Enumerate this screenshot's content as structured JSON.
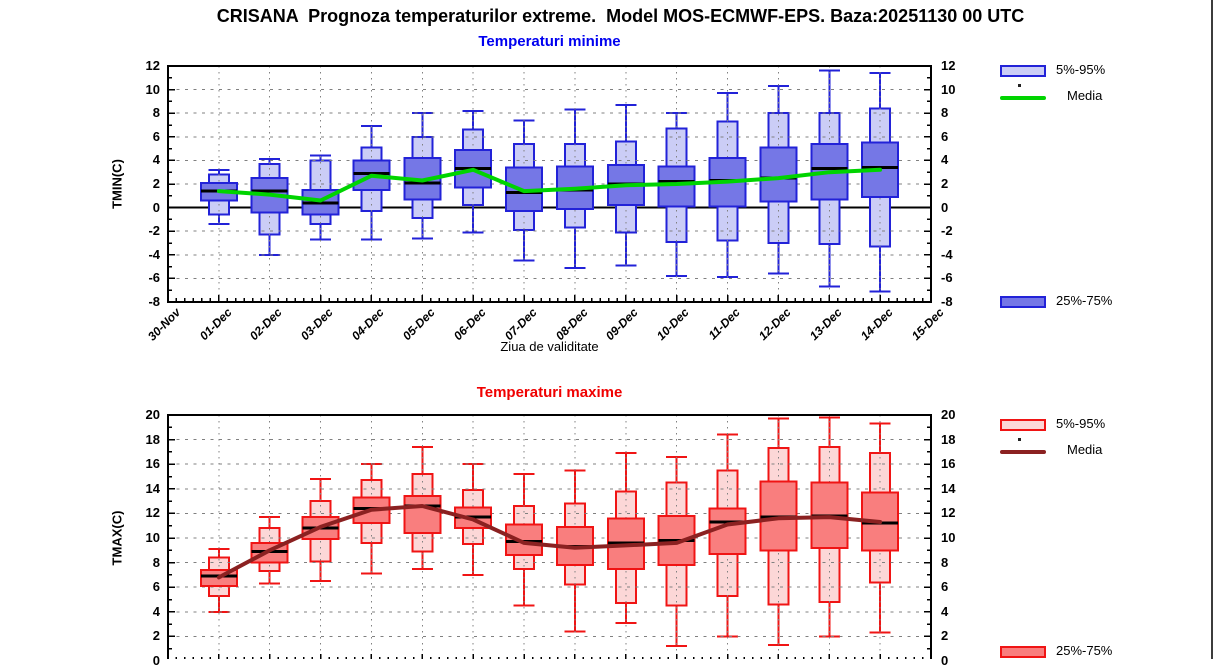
{
  "page": {
    "title": "CRISANA  Prognoza temperaturilor extreme.  Model MOS-ECMWF-EPS. Baza:20251130 00 UTC"
  },
  "chart_data": [
    {
      "id": "tmin",
      "type": "boxplot+line",
      "title": "Temperaturi minime",
      "title_color": "#0000f0",
      "ylabel": "TMIN(C)",
      "xlabel": "Ziua de validitate",
      "ylim": [
        -8,
        12
      ],
      "ytick_step": 2,
      "grid": true,
      "zero_line": true,
      "show_date_labels": true,
      "legend_position": "right",
      "legend": {
        "p5_95": "5%-95%",
        "media": "Media",
        "p25_75": "25%-75%"
      },
      "colors": {
        "border": "#2222d8",
        "box_dark": "#7577e6",
        "box_light": "#cbcdf6",
        "median": "#000000",
        "mean_line": "#00d400"
      },
      "x_categories": [
        "30-Nov",
        "01-Dec",
        "02-Dec",
        "03-Dec",
        "04-Dec",
        "05-Dec",
        "06-Dec",
        "07-Dec",
        "08-Dec",
        "09-Dec",
        "10-Dec",
        "11-Dec",
        "12-Dec",
        "13-Dec",
        "14-Dec",
        "15-Dec"
      ],
      "boxes": [
        {
          "day": "01-Dec",
          "whisker_low": -1.4,
          "p5": -0.6,
          "q25": 0.6,
          "median": 1.4,
          "q75": 2.1,
          "p95": 2.8,
          "whisker_high": 3.2,
          "mean": 1.4
        },
        {
          "day": "02-Dec",
          "whisker_low": -4.0,
          "p5": -2.3,
          "q25": -0.4,
          "median": 1.4,
          "q75": 2.5,
          "p95": 3.7,
          "whisker_high": 4.1,
          "mean": 1.1
        },
        {
          "day": "03-Dec",
          "whisker_low": -2.7,
          "p5": -1.4,
          "q25": -0.6,
          "median": 0.4,
          "q75": 1.5,
          "p95": 4.0,
          "whisker_high": 4.4,
          "mean": 0.6
        },
        {
          "day": "04-Dec",
          "whisker_low": -2.7,
          "p5": -0.3,
          "q25": 1.5,
          "median": 2.9,
          "q75": 4.0,
          "p95": 5.1,
          "whisker_high": 6.9,
          "mean": 2.7
        },
        {
          "day": "05-Dec",
          "whisker_low": -2.6,
          "p5": -0.9,
          "q25": 0.7,
          "median": 2.1,
          "q75": 4.2,
          "p95": 6.0,
          "whisker_high": 8.0,
          "mean": 2.3
        },
        {
          "day": "06-Dec",
          "whisker_low": -2.1,
          "p5": 0.2,
          "q25": 1.7,
          "median": 3.3,
          "q75": 4.9,
          "p95": 6.6,
          "whisker_high": 8.2,
          "mean": 3.2
        },
        {
          "day": "07-Dec",
          "whisker_low": -4.5,
          "p5": -1.9,
          "q25": -0.3,
          "median": 1.3,
          "q75": 3.4,
          "p95": 5.4,
          "whisker_high": 7.4,
          "mean": 1.4
        },
        {
          "day": "08-Dec",
          "whisker_low": -5.1,
          "p5": -1.7,
          "q25": -0.1,
          "median": 1.5,
          "q75": 3.5,
          "p95": 5.4,
          "whisker_high": 8.3,
          "mean": 1.6
        },
        {
          "day": "09-Dec",
          "whisker_low": -4.9,
          "p5": -2.1,
          "q25": 0.2,
          "median": 2.0,
          "q75": 3.6,
          "p95": 5.6,
          "whisker_high": 8.7,
          "mean": 1.9
        },
        {
          "day": "10-Dec",
          "whisker_low": -5.8,
          "p5": -2.9,
          "q25": 0.1,
          "median": 2.2,
          "q75": 3.5,
          "p95": 6.7,
          "whisker_high": 8.0,
          "mean": 2.0
        },
        {
          "day": "11-Dec",
          "whisker_low": -5.9,
          "p5": -2.8,
          "q25": 0.1,
          "median": 2.3,
          "q75": 4.2,
          "p95": 7.3,
          "whisker_high": 9.7,
          "mean": 2.2
        },
        {
          "day": "12-Dec",
          "whisker_low": -5.6,
          "p5": -3.0,
          "q25": 0.5,
          "median": 2.5,
          "q75": 5.1,
          "p95": 8.0,
          "whisker_high": 10.3,
          "mean": 2.5
        },
        {
          "day": "13-Dec",
          "whisker_low": -6.7,
          "p5": -3.1,
          "q25": 0.7,
          "median": 3.3,
          "q75": 5.4,
          "p95": 8.0,
          "whisker_high": 11.6,
          "mean": 3.0
        },
        {
          "day": "14-Dec",
          "whisker_low": -7.1,
          "p5": -3.3,
          "q25": 0.9,
          "median": 3.4,
          "q75": 5.5,
          "p95": 8.4,
          "whisker_high": 11.4,
          "mean": 3.2
        }
      ]
    },
    {
      "id": "tmax",
      "type": "boxplot+line",
      "title": "Temperaturi maxime",
      "title_color": "#f00000",
      "ylabel": "TMAX(C)",
      "xlabel": "",
      "ylim": [
        0,
        20
      ],
      "ytick_step": 2,
      "grid": true,
      "zero_line": false,
      "show_date_labels": false,
      "legend_position": "right",
      "legend": {
        "p5_95": "5%-95%",
        "media": "Media",
        "p25_75": "25%-75%"
      },
      "colors": {
        "border": "#f01414",
        "box_dark": "#f97e7e",
        "box_light": "#fcd7d7",
        "median": "#000000",
        "mean_line": "#8b2121"
      },
      "x_categories": [
        "30-Nov",
        "01-Dec",
        "02-Dec",
        "03-Dec",
        "04-Dec",
        "05-Dec",
        "06-Dec",
        "07-Dec",
        "08-Dec",
        "09-Dec",
        "10-Dec",
        "11-Dec",
        "12-Dec",
        "13-Dec",
        "14-Dec",
        "15-Dec"
      ],
      "boxes": [
        {
          "day": "01-Dec",
          "whisker_low": 4.0,
          "p5": 5.3,
          "q25": 6.1,
          "median": 6.9,
          "q75": 7.4,
          "p95": 8.4,
          "whisker_high": 9.1,
          "mean": 6.8
        },
        {
          "day": "02-Dec",
          "whisker_low": 6.3,
          "p5": 7.3,
          "q25": 8.0,
          "median": 8.9,
          "q75": 9.6,
          "p95": 10.8,
          "whisker_high": 11.7,
          "mean": 9.0
        },
        {
          "day": "03-Dec",
          "whisker_low": 6.5,
          "p5": 8.1,
          "q25": 9.9,
          "median": 10.8,
          "q75": 11.7,
          "p95": 13.0,
          "whisker_high": 14.8,
          "mean": 10.9
        },
        {
          "day": "04-Dec",
          "whisker_low": 7.1,
          "p5": 9.6,
          "q25": 11.2,
          "median": 12.4,
          "q75": 13.3,
          "p95": 14.7,
          "whisker_high": 16.0,
          "mean": 12.3
        },
        {
          "day": "05-Dec",
          "whisker_low": 7.5,
          "p5": 8.9,
          "q25": 10.4,
          "median": 12.6,
          "q75": 13.4,
          "p95": 15.2,
          "whisker_high": 17.4,
          "mean": 12.6
        },
        {
          "day": "06-Dec",
          "whisker_low": 7.0,
          "p5": 9.5,
          "q25": 10.8,
          "median": 11.7,
          "q75": 12.5,
          "p95": 13.9,
          "whisker_high": 16.0,
          "mean": 11.5
        },
        {
          "day": "07-Dec",
          "whisker_low": 4.5,
          "p5": 7.5,
          "q25": 8.6,
          "median": 9.7,
          "q75": 11.1,
          "p95": 12.6,
          "whisker_high": 15.2,
          "mean": 9.6
        },
        {
          "day": "08-Dec",
          "whisker_low": 2.4,
          "p5": 6.2,
          "q25": 7.8,
          "median": 9.3,
          "q75": 10.9,
          "p95": 12.8,
          "whisker_high": 15.5,
          "mean": 9.2
        },
        {
          "day": "09-Dec",
          "whisker_low": 3.1,
          "p5": 4.7,
          "q25": 7.5,
          "median": 9.6,
          "q75": 11.6,
          "p95": 13.8,
          "whisker_high": 16.9,
          "mean": 9.4
        },
        {
          "day": "10-Dec",
          "whisker_low": 1.2,
          "p5": 4.5,
          "q25": 7.8,
          "median": 9.8,
          "q75": 11.8,
          "p95": 14.5,
          "whisker_high": 16.6,
          "mean": 9.6
        },
        {
          "day": "11-Dec",
          "whisker_low": 2.0,
          "p5": 5.3,
          "q25": 8.7,
          "median": 11.3,
          "q75": 12.4,
          "p95": 15.5,
          "whisker_high": 18.4,
          "mean": 11.1
        },
        {
          "day": "12-Dec",
          "whisker_low": 1.3,
          "p5": 4.6,
          "q25": 9.0,
          "median": 11.7,
          "q75": 14.6,
          "p95": 17.3,
          "whisker_high": 19.7,
          "mean": 11.6
        },
        {
          "day": "13-Dec",
          "whisker_low": 2.0,
          "p5": 4.8,
          "q25": 9.2,
          "median": 11.8,
          "q75": 14.5,
          "p95": 17.4,
          "whisker_high": 19.8,
          "mean": 11.7
        },
        {
          "day": "14-Dec",
          "whisker_low": 2.3,
          "p5": 6.4,
          "q25": 9.0,
          "median": 11.2,
          "q75": 13.7,
          "p95": 16.9,
          "whisker_high": 19.3,
          "mean": 11.3
        }
      ]
    }
  ]
}
